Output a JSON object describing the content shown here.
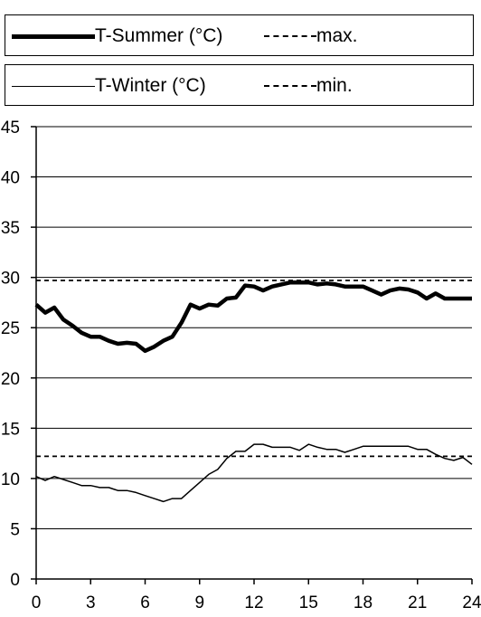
{
  "legend": {
    "summer_label": "T-Summer (°C)",
    "max_label": "max.",
    "winter_label": "T-Winter (°C)",
    "min_label": "min."
  },
  "chart_data": {
    "type": "line",
    "title": "",
    "xlabel": "",
    "ylabel": "",
    "xlim": [
      0,
      24
    ],
    "ylim": [
      0,
      45
    ],
    "x_ticks": [
      0,
      3,
      6,
      9,
      12,
      15,
      18,
      21,
      24
    ],
    "y_ticks": [
      0,
      5,
      10,
      15,
      20,
      25,
      30,
      35,
      40,
      45
    ],
    "grid": "horizontal",
    "legend_position": "top",
    "colors": {
      "line": "#000000",
      "background": "#ffffff"
    },
    "series": [
      {
        "name": "T-Summer (°C)",
        "style": "thick-solid",
        "x": [
          0,
          0.5,
          1,
          1.5,
          2,
          2.5,
          3,
          3.5,
          4,
          4.5,
          5,
          5.5,
          6,
          6.5,
          7,
          7.5,
          8,
          8.5,
          9,
          9.5,
          10,
          10.5,
          11,
          11.5,
          12,
          12.5,
          13,
          13.5,
          14,
          14.5,
          15,
          15.5,
          16,
          16.5,
          17,
          17.5,
          18,
          18.5,
          19,
          19.5,
          20,
          20.5,
          21,
          21.5,
          22,
          22.5,
          23,
          23.5,
          24
        ],
        "y": [
          27.3,
          26.5,
          27.0,
          25.8,
          25.2,
          24.5,
          24.1,
          24.1,
          23.7,
          23.4,
          23.5,
          23.4,
          22.7,
          23.1,
          23.7,
          24.1,
          25.5,
          27.3,
          26.9,
          27.3,
          27.2,
          27.9,
          28.0,
          29.2,
          29.1,
          28.7,
          29.1,
          29.3,
          29.5,
          29.5,
          29.5,
          29.3,
          29.4,
          29.3,
          29.1,
          29.1,
          29.1,
          28.7,
          28.3,
          28.7,
          28.9,
          28.8,
          28.5,
          27.9,
          28.4,
          27.9,
          27.9,
          27.9,
          27.9
        ]
      },
      {
        "name": "T-Winter (°C)",
        "style": "thin-solid",
        "x": [
          0,
          0.5,
          1,
          1.5,
          2,
          2.5,
          3,
          3.5,
          4,
          4.5,
          5,
          5.5,
          6,
          6.5,
          7,
          7.5,
          8,
          8.5,
          9,
          9.5,
          10,
          10.5,
          11,
          11.5,
          12,
          12.5,
          13,
          13.5,
          14,
          14.5,
          15,
          15.5,
          16,
          16.5,
          17,
          17.5,
          18,
          18.5,
          19,
          19.5,
          20,
          20.5,
          21,
          21.5,
          22,
          22.5,
          23,
          23.5,
          24
        ],
        "y": [
          10.2,
          9.8,
          10.2,
          9.9,
          9.6,
          9.3,
          9.3,
          9.1,
          9.1,
          8.8,
          8.8,
          8.6,
          8.3,
          8.0,
          7.7,
          8.0,
          8.0,
          8.8,
          9.6,
          10.4,
          10.9,
          12.0,
          12.7,
          12.7,
          13.4,
          13.4,
          13.1,
          13.1,
          13.1,
          12.8,
          13.4,
          13.1,
          12.9,
          12.9,
          12.6,
          12.9,
          13.2,
          13.2,
          13.2,
          13.2,
          13.2,
          13.2,
          12.9,
          12.9,
          12.4,
          12.0,
          11.8,
          12.1,
          11.4
        ]
      },
      {
        "name": "max.",
        "style": "dashed",
        "x": [
          0,
          24
        ],
        "y": [
          29.7,
          29.7
        ]
      },
      {
        "name": "min.",
        "style": "dashed",
        "x": [
          0,
          24
        ],
        "y": [
          12.2,
          12.2
        ]
      }
    ]
  }
}
